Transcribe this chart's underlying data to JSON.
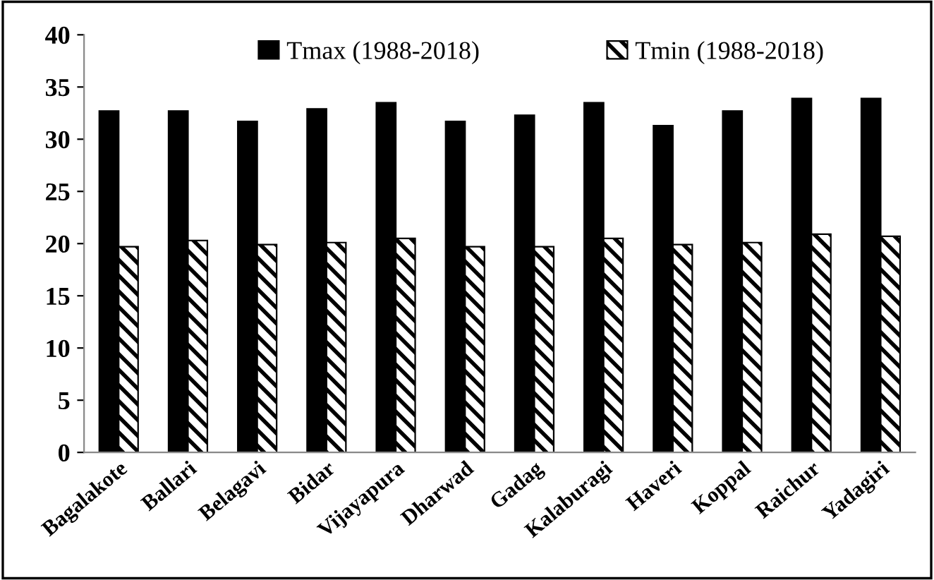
{
  "chart_data": {
    "type": "bar",
    "categories": [
      "Bagalakote",
      "Ballari",
      "Belagavi",
      "Bidar",
      "Vijayapura",
      "Dharwad",
      "Gadag",
      "Kalaburagi",
      "Haveri",
      "Koppal",
      "Raichur",
      "Yadagiri"
    ],
    "series": [
      {
        "name": "Tmax (1988-2018)",
        "color": "#000000",
        "values": [
          32.7,
          32.7,
          31.7,
          32.9,
          33.5,
          31.7,
          32.3,
          33.5,
          31.3,
          32.7,
          33.9,
          33.9
        ]
      },
      {
        "name": "Tmin (1988-2018)",
        "color": "#000000",
        "values": [
          19.7,
          20.3,
          19.9,
          20.1,
          20.5,
          19.7,
          19.7,
          20.5,
          19.9,
          20.1,
          20.9,
          20.7
        ]
      }
    ],
    "ylim": [
      0,
      40
    ],
    "yticks": [
      0,
      5,
      10,
      15,
      20,
      25,
      30,
      35,
      40
    ],
    "grid": false,
    "legend": "top"
  }
}
